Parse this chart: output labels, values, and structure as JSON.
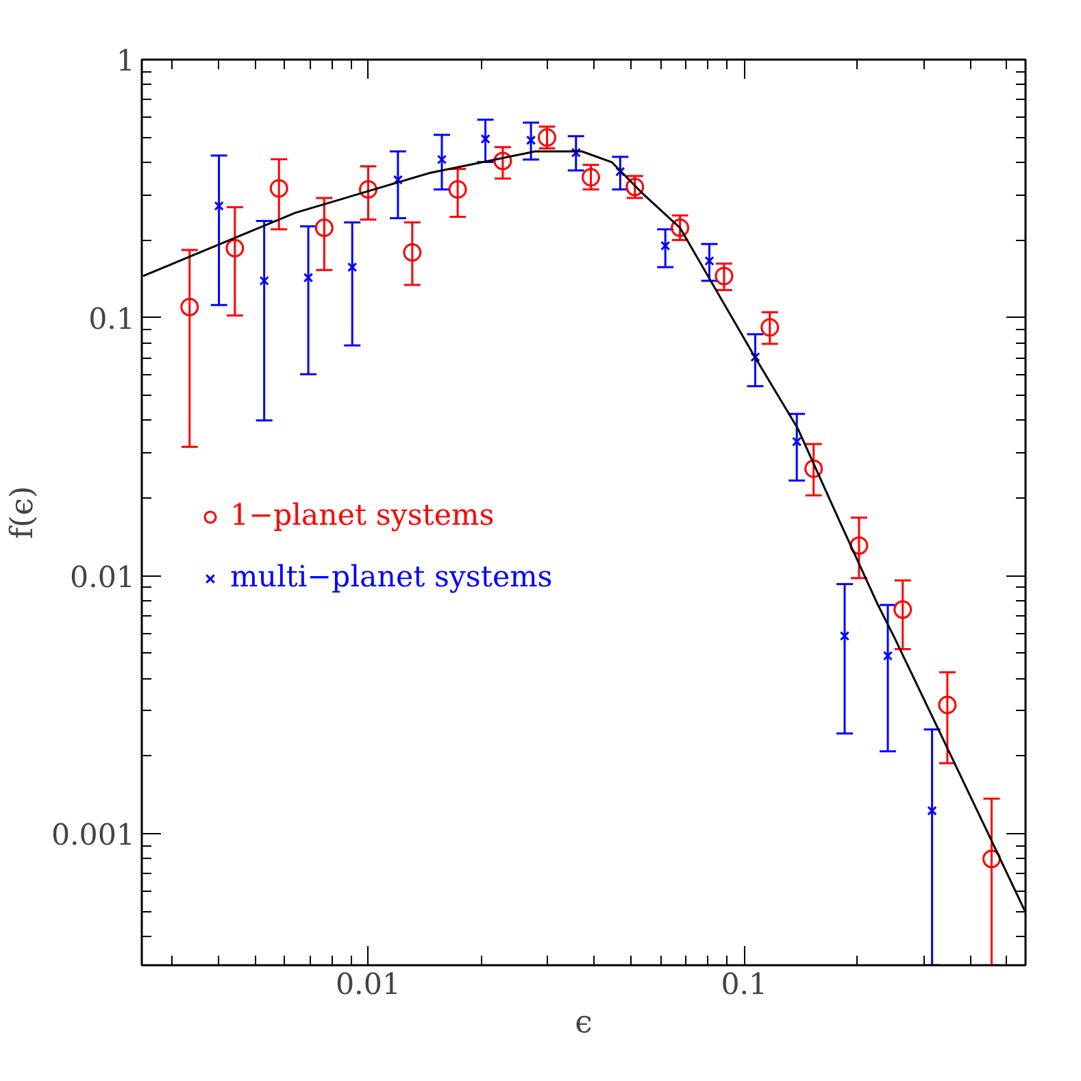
{
  "chart_data": {
    "type": "scatter",
    "xlabel": "ϵ",
    "ylabel": "f(ϵ)",
    "log": "xy",
    "grid": false,
    "legend": "left",
    "xlim": [
      0.0025,
      0.56
    ],
    "ylim": [
      0.00031,
      1
    ],
    "xticks": [
      0.01,
      0.1
    ],
    "yticks": [
      0.001,
      0.01,
      0.1,
      1
    ],
    "series": [
      {
        "name": "1−planet systems",
        "color": "#ff0000",
        "marker": "circle",
        "x": [
          0.00335,
          0.00442,
          0.00579,
          0.00764,
          0.01,
          0.0131,
          0.0173,
          0.0228,
          0.0299,
          0.0391,
          0.0512,
          0.0675,
          0.0884,
          0.117,
          0.153,
          0.202,
          0.264,
          0.347,
          0.455
        ],
        "values": [
          0.11,
          0.186,
          0.317,
          0.223,
          0.314,
          0.179,
          0.314,
          0.405,
          0.499,
          0.35,
          0.321,
          0.223,
          0.145,
          0.0917,
          0.026,
          0.0131,
          0.0074,
          0.00316,
          0.0008
        ],
        "errors": [
          [
            0.0316,
            0.183
          ],
          [
            0.102,
            0.268
          ],
          [
            0.22,
            0.411
          ],
          [
            0.153,
            0.291
          ],
          [
            0.24,
            0.386
          ],
          [
            0.134,
            0.234
          ],
          [
            0.246,
            0.377
          ],
          [
            0.346,
            0.458
          ],
          [
            0.453,
            0.55
          ],
          [
            0.314,
            0.391
          ],
          [
            0.291,
            0.354
          ],
          [
            0.2,
            0.249
          ],
          [
            0.128,
            0.162
          ],
          [
            0.0792,
            0.105
          ],
          [
            0.0205,
            0.0324
          ],
          [
            0.0098,
            0.0168
          ],
          [
            0.0052,
            0.0096
          ],
          [
            0.00188,
            0.00423
          ],
          [
            0.00031,
            0.00137
          ]
        ]
      },
      {
        "name": "multi−planet systems",
        "color": "#0000ff",
        "marker": "cross",
        "x": [
          0.00401,
          0.00529,
          0.00693,
          0.00907,
          0.012,
          0.0157,
          0.0205,
          0.0271,
          0.0357,
          0.0468,
          0.0617,
          0.0808,
          0.107,
          0.138,
          0.185,
          0.241,
          0.316
        ],
        "values": [
          0.271,
          0.139,
          0.143,
          0.157,
          0.342,
          0.41,
          0.493,
          0.487,
          0.436,
          0.368,
          0.19,
          0.166,
          0.0704,
          0.0331,
          0.00585,
          0.0049,
          0.00123
        ],
        "errors": [
          [
            0.112,
            0.425
          ],
          [
            0.04,
            0.237
          ],
          [
            0.0604,
            0.226
          ],
          [
            0.0781,
            0.234
          ],
          [
            0.243,
            0.441
          ],
          [
            0.314,
            0.511
          ],
          [
            0.401,
            0.585
          ],
          [
            0.41,
            0.57
          ],
          [
            0.372,
            0.505
          ],
          [
            0.314,
            0.42
          ],
          [
            0.157,
            0.22
          ],
          [
            0.139,
            0.193
          ],
          [
            0.0543,
            0.0863
          ],
          [
            0.0234,
            0.0424
          ],
          [
            0.00245,
            0.00929
          ],
          [
            0.00209,
            0.00771
          ],
          [
            0.00031,
            0.00254
          ]
        ]
      },
      {
        "type": "line",
        "color": "#000000",
        "line_style": "solid",
        "x": [
          0.00252,
          0.0064,
          0.0145,
          0.0278,
          0.037,
          0.0445,
          0.0533,
          0.0675,
          0.105,
          0.139,
          0.181,
          0.226,
          0.25,
          0.347,
          0.446,
          0.557
        ],
        "values": [
          0.145,
          0.255,
          0.363,
          0.441,
          0.441,
          0.4,
          0.306,
          0.223,
          0.0734,
          0.0371,
          0.0158,
          0.0078,
          0.00583,
          0.00215,
          0.001,
          0.000505
        ]
      }
    ]
  }
}
